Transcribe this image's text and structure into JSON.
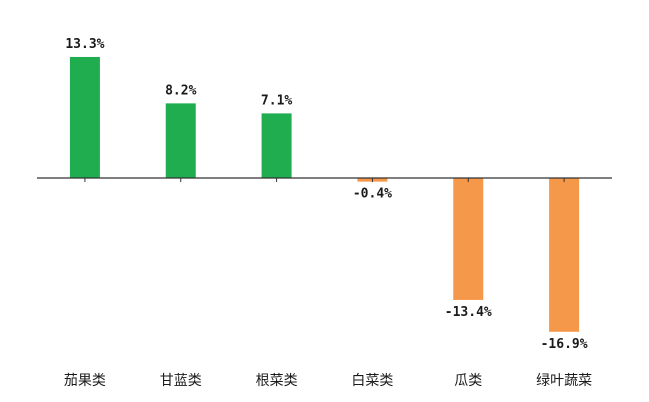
{
  "chart_data": {
    "type": "bar",
    "categories": [
      "茄果类",
      "甘蓝类",
      "根菜类",
      "白菜类",
      "瓜类",
      "绿叶蔬菜"
    ],
    "values": [
      13.3,
      8.2,
      7.1,
      -0.4,
      -13.4,
      -16.9
    ],
    "value_labels": [
      "13.3%",
      "8.2%",
      "7.1%",
      "-0.4%",
      "-13.4%",
      "-16.9%"
    ],
    "unit": "%",
    "title": "",
    "xlabel": "",
    "ylabel": "",
    "ylim": [
      -17.5,
      14.0
    ],
    "grid": false,
    "legend": "none",
    "colors": {
      "positive": "#1fad4f",
      "negative": "#f5984a",
      "axis": "#333333",
      "text": "#1a1a1a"
    }
  }
}
